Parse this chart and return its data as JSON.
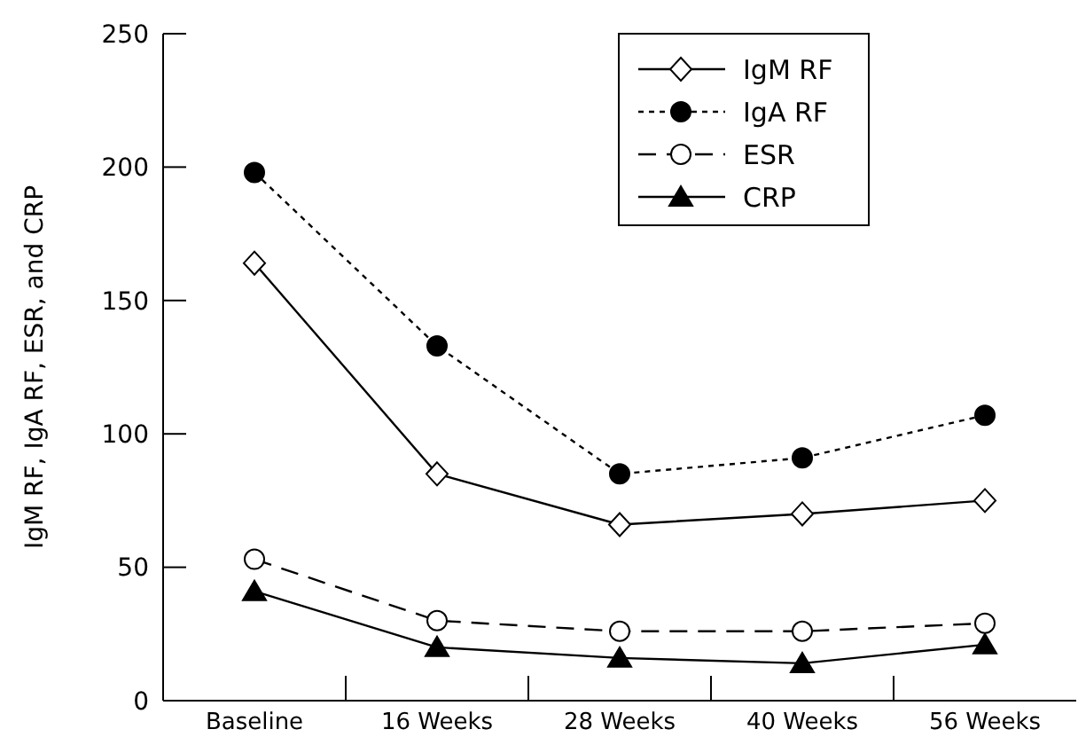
{
  "chart_data": {
    "type": "line",
    "ylabel": "IgM RF, IgA RF, ESR, and CRP",
    "categories": [
      "Baseline",
      "16 Weeks",
      "28 Weeks",
      "40 Weeks",
      "56 Weeks"
    ],
    "ylim": [
      0,
      250
    ],
    "yticks": [
      0,
      50,
      100,
      150,
      200,
      250
    ],
    "grid": false,
    "legend": "top right",
    "series": [
      {
        "name": "IgM RF",
        "color": "#000000",
        "values": [
          164,
          85,
          66,
          70,
          75
        ],
        "marker": "diamond",
        "line_style": "solid"
      },
      {
        "name": "IgA RF",
        "color": "#000000",
        "values": [
          198,
          133,
          85,
          91,
          107
        ],
        "marker": "circle",
        "line_style": "dotted"
      },
      {
        "name": "ESR",
        "color": "#000000",
        "values": [
          53,
          30,
          26,
          26,
          29
        ],
        "marker": "circle",
        "line_style": "dashed"
      },
      {
        "name": "CRP",
        "color": "#000000",
        "values": [
          41,
          20,
          16,
          14,
          21
        ],
        "marker": "triangle",
        "line_style": "solid"
      }
    ]
  }
}
